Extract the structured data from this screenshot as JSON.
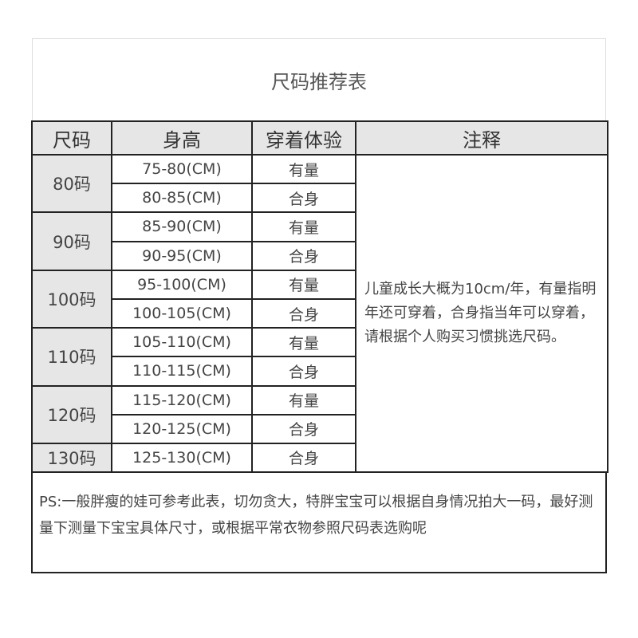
{
  "title": "尺码推荐表",
  "headers": [
    "尺码",
    "身高",
    "穿着体验",
    "注释"
  ],
  "groups": [
    {
      "size": "80码",
      "rows": [
        [
          "75-80(CM)",
          "有量"
        ],
        [
          "80-85(CM)",
          "合身"
        ]
      ]
    },
    {
      "size": "90码",
      "rows": [
        [
          "85-90(CM)",
          "有量"
        ],
        [
          "90-95(CM)",
          "合身"
        ]
      ]
    },
    {
      "size": "100码",
      "rows": [
        [
          "95-100(CM)",
          "有量"
        ],
        [
          "100-105(CM)",
          "合身"
        ]
      ]
    },
    {
      "size": "110码",
      "rows": [
        [
          "105-110(CM)",
          "有量"
        ],
        [
          "110-115(CM)",
          "合身"
        ]
      ]
    },
    {
      "size": "120码",
      "rows": [
        [
          "115-120(CM)",
          "有量"
        ],
        [
          "120-125(CM)",
          "合身"
        ]
      ]
    },
    {
      "size": "130码",
      "rows": [
        [
          "125-130(CM)",
          "合身"
        ]
      ]
    }
  ],
  "note": "儿童成长大概为10cm/年，有量指明年还可穿着，合身指当年可以穿着，请根据个人购买习惯挑选尺码。",
  "ps": "PS:一般胖瘦的娃可参考此表，切勿贪大，特胖宝宝可以根据自身情况拍大一码，最好测量下测量下宝宝具体尺寸，或根据平常衣物参照尺码表选购呢"
}
